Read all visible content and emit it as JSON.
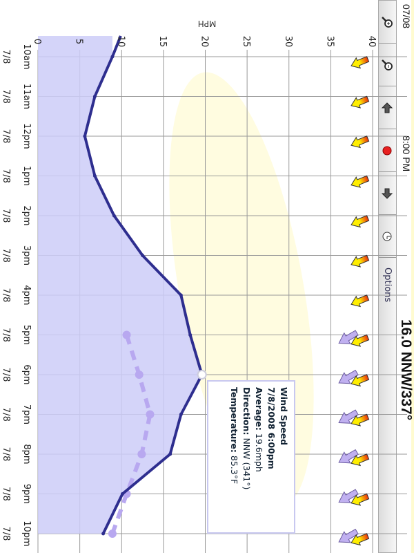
{
  "header": {
    "date": "07/08",
    "time": "8:00 PM",
    "current": "16.0 NNW/337°"
  },
  "toolbar": {
    "buttons": [
      "zoom-in",
      "zoom-out",
      "scroll-up",
      "live",
      "scroll-down",
      "history"
    ],
    "options_label": "Options"
  },
  "tooltip": {
    "title": "Wind Speed",
    "datetime": "7/8/2008 6:00pm",
    "average_label": "Average:",
    "average": "19.6mph",
    "direction_label": "Direction:",
    "direction": "NNW (341°)",
    "temperature_label": "Temperature:",
    "temperature": "85.3°F"
  },
  "colors": {
    "line": "#2e2e8f",
    "fill": "#ccccf8",
    "gust": "#b8a8f0",
    "grid": "#999999",
    "arrow_yellow": "#ffee00",
    "arrow_red": "#e83010",
    "arrow_purple": "#c0b0f0"
  },
  "chart_data": {
    "type": "line",
    "ylabel": "MPH",
    "ylim": [
      0,
      40
    ],
    "yticks": [
      0,
      5,
      10,
      15,
      20,
      25,
      30,
      35,
      40
    ],
    "grid": true,
    "categories": [
      "10am",
      "11am",
      "12pm",
      "1pm",
      "2pm",
      "3pm",
      "4pm",
      "5pm",
      "6pm",
      "7pm",
      "8pm",
      "9pm",
      "10pm"
    ],
    "date_labels": [
      "7/8",
      "7/8",
      "7/8",
      "7/8",
      "7/8",
      "7/8",
      "7/8",
      "7/8",
      "7/8",
      "7/8",
      "7/8",
      "7/8",
      "7/8"
    ],
    "series": [
      {
        "values": [
          8.9,
          6.8,
          5.6,
          6.8,
          9.1,
          12.5,
          17.1,
          18.2,
          19.6,
          17.1,
          15.8,
          10.1,
          7.8
        ]
      },
      {
        "values": [
          null,
          null,
          null,
          null,
          null,
          null,
          null,
          10.6,
          12.1,
          13.4,
          12.4,
          10.6,
          8.9
        ]
      }
    ],
    "highlight_index": 8,
    "direction_arrows": {
      "gust_from_index": 7
    }
  }
}
